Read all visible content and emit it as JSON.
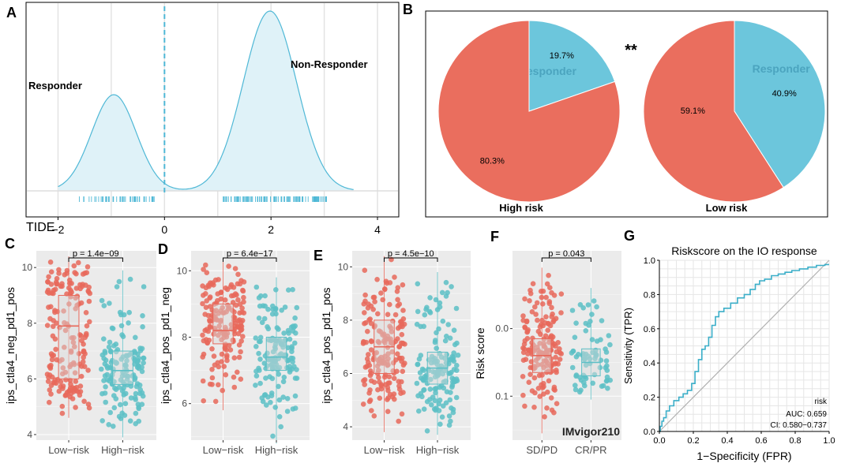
{
  "colors": {
    "low": "#e8685a",
    "high": "#5cbfc6",
    "density_line": "#4fb8d6",
    "density_fill": "#dff2f8",
    "pie_red": "#ea6e5e",
    "pie_blue": "#6cc6dc",
    "roc_line": "#3aaec8"
  },
  "panels": {
    "A": {
      "label": "A",
      "chart_data": {
        "type": "area",
        "xlabel": "TIDE",
        "xticks": [
          -2,
          0,
          2,
          4
        ],
        "xlim": [
          -2.6,
          4.4
        ],
        "threshold": 0,
        "left_text": "Responder",
        "right_text": "Non-Responder",
        "components": [
          {
            "mean": -0.95,
            "sd": 0.42,
            "weight": 0.31
          },
          {
            "mean": 1.98,
            "sd": 0.5,
            "weight": 0.69
          }
        ],
        "rug_ranges": [
          [
            -1.6,
            -0.1
          ],
          [
            1.1,
            3.05
          ]
        ]
      }
    },
    "B": {
      "label": "B",
      "significance": "**",
      "chart_data": {
        "type": "pie",
        "pies": [
          {
            "name": "High risk",
            "slices": [
              {
                "label": "Responder",
                "value": 19.7,
                "text": "19.7%",
                "color": "#6cc6dc"
              },
              {
                "label": "",
                "value": 80.3,
                "text": "80.3%",
                "color": "#ea6e5e"
              }
            ]
          },
          {
            "name": "Low risk",
            "slices": [
              {
                "label": "Responder",
                "value": 40.9,
                "text": "40.9%",
                "color": "#6cc6dc"
              },
              {
                "label": "",
                "value": 59.1,
                "text": "59.1%",
                "color": "#ea6e5e"
              }
            ]
          }
        ]
      }
    },
    "C": {
      "label": "C",
      "chart_data": {
        "type": "box",
        "ylabel": "ips_ctla4_neg_pd1_pos",
        "categories": [
          "Low−risk",
          "High−risk"
        ],
        "ylim": [
          3.8,
          10.6
        ],
        "yticks": [
          4,
          6,
          8,
          10
        ],
        "pvalue": "p = 1.4e−09",
        "boxes": [
          {
            "min": 4.6,
            "q1": 6.0,
            "median": 7.9,
            "q3": 9.0,
            "max": 10.4,
            "color": "#e8685a"
          },
          {
            "min": 3.9,
            "q1": 5.8,
            "median": 6.3,
            "q3": 7.0,
            "max": 9.9,
            "color": "#5cbfc6"
          }
        ]
      }
    },
    "D": {
      "label": "D",
      "chart_data": {
        "type": "box",
        "ylabel": "ips_ctla4_pos_pd1_neg",
        "categories": [
          "Low−risk",
          "High−risk"
        ],
        "ylim": [
          4.9,
          10.6
        ],
        "yticks": [
          6,
          8,
          10
        ],
        "pvalue": "p = 6.4e−17",
        "boxes": [
          {
            "min": 5.8,
            "q1": 7.8,
            "median": 8.2,
            "q3": 9.0,
            "max": 10.3,
            "color": "#e8685a"
          },
          {
            "min": 4.8,
            "q1": 7.0,
            "median": 7.4,
            "q3": 8.0,
            "max": 9.8,
            "color": "#5cbfc6"
          }
        ]
      }
    },
    "E": {
      "label": "E",
      "chart_data": {
        "type": "box",
        "ylabel": "ips_ctla4_pos_pd1_pos",
        "categories": [
          "Low−risk",
          "High−risk"
        ],
        "ylim": [
          3.5,
          10.6
        ],
        "yticks": [
          4,
          6,
          8,
          10
        ],
        "pvalue": "p = 4.5e−10",
        "boxes": [
          {
            "min": 3.8,
            "q1": 6.0,
            "median": 7.0,
            "q3": 8.0,
            "max": 10.4,
            "color": "#e8685a"
          },
          {
            "min": 3.7,
            "q1": 5.6,
            "median": 6.2,
            "q3": 6.8,
            "max": 9.8,
            "color": "#5cbfc6"
          }
        ]
      }
    },
    "F": {
      "label": "F",
      "chart_data": {
        "type": "box",
        "ylabel": "Risk score",
        "categories": [
          "SD/PD",
          "CR/PR"
        ],
        "ylim": [
          -0.115,
          0.165
        ],
        "yticks": [
          0.0,
          0.1
        ],
        "ytick_labels": [
          "0.0",
          "0.1"
        ],
        "y_reversed": true,
        "pvalue": "p = 0.043",
        "annotation": "IMvigor210",
        "boxes": [
          {
            "min": -0.09,
            "q1": 0.015,
            "median": 0.04,
            "q3": 0.065,
            "max": 0.155,
            "color": "#e8685a"
          },
          {
            "min": -0.06,
            "q1": 0.03,
            "median": 0.05,
            "q3": 0.07,
            "max": 0.105,
            "color": "#5cbfc6"
          }
        ]
      }
    },
    "G": {
      "label": "G",
      "chart_data": {
        "type": "line",
        "title": "Riskscore on the IO response",
        "xlabel": "1−Specificity (FPR)",
        "ylabel": "Sensitivity (TPR)",
        "xlim": [
          0,
          1
        ],
        "ylim": [
          0,
          1
        ],
        "ticks": [
          0.0,
          0.2,
          0.4,
          0.6,
          0.8,
          1.0
        ],
        "tick_labels": [
          "0.0",
          "0.2",
          "0.4",
          "0.6",
          "0.8",
          "1.0"
        ],
        "legend_title": "risk",
        "auc": "AUC: 0.659",
        "ci": "CI: 0.580−0.737",
        "roc": [
          [
            0,
            0
          ],
          [
            0.01,
            0.03
          ],
          [
            0.02,
            0.06
          ],
          [
            0.03,
            0.08
          ],
          [
            0.05,
            0.12
          ],
          [
            0.07,
            0.15
          ],
          [
            0.1,
            0.18
          ],
          [
            0.13,
            0.2
          ],
          [
            0.15,
            0.22
          ],
          [
            0.18,
            0.24
          ],
          [
            0.2,
            0.28
          ],
          [
            0.22,
            0.35
          ],
          [
            0.24,
            0.42
          ],
          [
            0.26,
            0.48
          ],
          [
            0.28,
            0.5
          ],
          [
            0.3,
            0.55
          ],
          [
            0.32,
            0.62
          ],
          [
            0.34,
            0.67
          ],
          [
            0.36,
            0.7
          ],
          [
            0.4,
            0.72
          ],
          [
            0.44,
            0.75
          ],
          [
            0.48,
            0.78
          ],
          [
            0.52,
            0.8
          ],
          [
            0.55,
            0.83
          ],
          [
            0.58,
            0.86
          ],
          [
            0.6,
            0.88
          ],
          [
            0.64,
            0.89
          ],
          [
            0.68,
            0.91
          ],
          [
            0.72,
            0.92
          ],
          [
            0.76,
            0.93
          ],
          [
            0.8,
            0.94
          ],
          [
            0.85,
            0.95
          ],
          [
            0.9,
            0.96
          ],
          [
            0.95,
            0.97
          ],
          [
            1,
            0.975
          ]
        ]
      }
    }
  }
}
